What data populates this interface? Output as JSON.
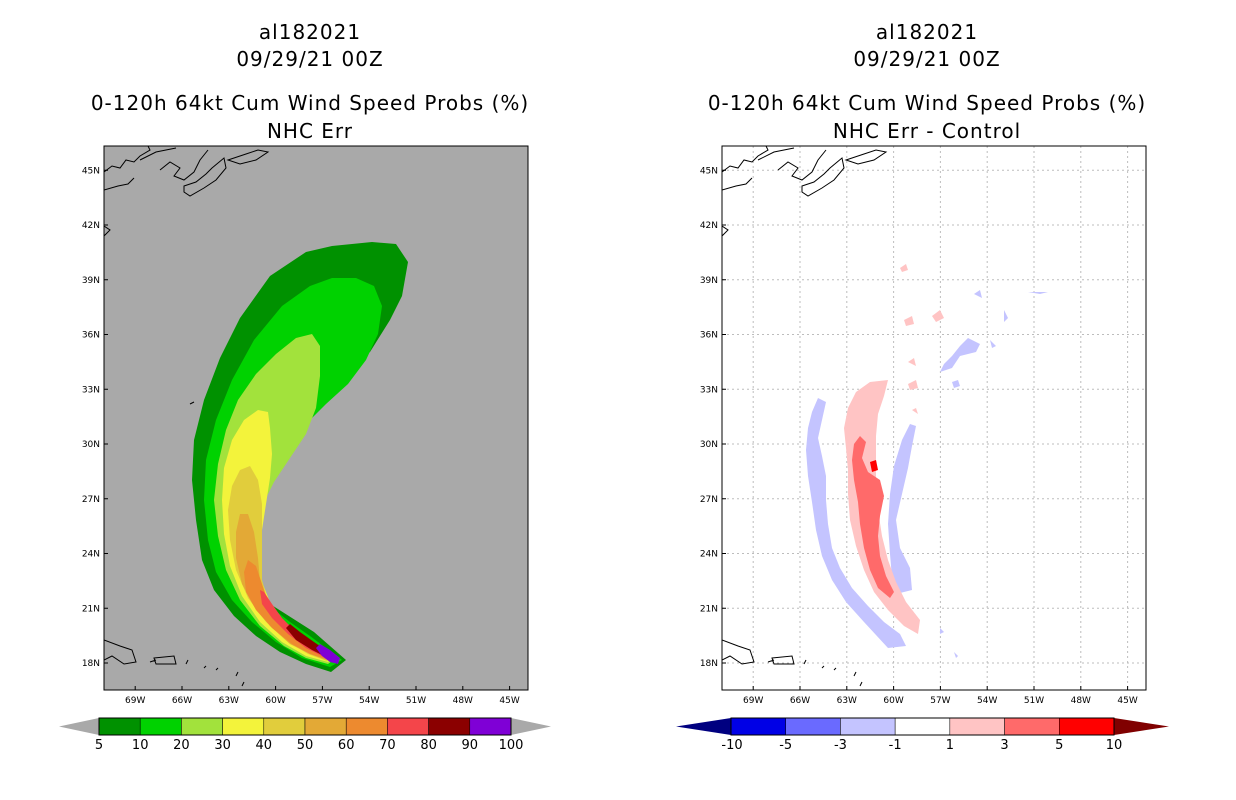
{
  "panels": [
    {
      "storm": "al182021",
      "time": "09/29/21 00Z",
      "title": "0-120h 64kt Cum Wind Speed Probs (%)",
      "subtitle": "NHC Err",
      "background": "#a9a9a9",
      "gridlines": false,
      "colorbar": {
        "labels": [
          "5",
          "10",
          "20",
          "30",
          "40",
          "50",
          "60",
          "70",
          "80",
          "90",
          "100"
        ],
        "colors": [
          "#009100",
          "#00d200",
          "#a2e23c",
          "#f3f33b",
          "#e1cd3c",
          "#e3a936",
          "#ed8a2f",
          "#f4454a",
          "#8b0000",
          "#7f00d6"
        ],
        "low_cap": "#a9a9a9",
        "high_cap": "#a9a9a9"
      }
    },
    {
      "storm": "al182021",
      "time": "09/29/21 00Z",
      "title": "0-120h 64kt Cum Wind Speed Probs (%)",
      "subtitle": "NHC Err - Control",
      "background": "#ffffff",
      "gridlines": true,
      "colorbar": {
        "labels": [
          "-10",
          "-5",
          "-3",
          "-1",
          "1",
          "3",
          "5",
          "10"
        ],
        "colors": [
          "#0000e6",
          "#6a6aff",
          "#c4c4ff",
          "#ffffff",
          "#ffc4c4",
          "#ff6a6a",
          "#ff0000"
        ],
        "low_cap": "#000080",
        "high_cap": "#800000"
      }
    }
  ],
  "axes": {
    "x_ticks": [
      "69W",
      "66W",
      "63W",
      "60W",
      "57W",
      "54W",
      "51W",
      "48W",
      "45W"
    ],
    "y_ticks": [
      "45N",
      "42N",
      "39N",
      "36N",
      "33N",
      "30N",
      "27N",
      "24N",
      "21N",
      "18N"
    ]
  },
  "chart_data": [
    {
      "type": "heatmap",
      "title": "0-120h 64kt Cum Wind Speed Probs (%)",
      "subtitle": "NHC Err",
      "units": "%",
      "xlim": [
        -71,
        -43.5
      ],
      "ylim": [
        16.5,
        46.5
      ],
      "contour_levels": [
        5,
        10,
        20,
        30,
        40,
        50,
        60,
        70,
        80,
        90,
        100
      ],
      "peak_location": {
        "lon": -55.3,
        "lat": 18.1
      },
      "max_extent_north_lat": 40.9
    },
    {
      "type": "heatmap",
      "title": "0-120h 64kt Cum Wind Speed Probs (%)",
      "subtitle": "NHC Err - Control",
      "units": "%",
      "xlim": [
        -71,
        -43.5
      ],
      "ylim": [
        16.5,
        46.5
      ],
      "contour_levels": [
        -10,
        -5,
        -3,
        -1,
        1,
        3,
        5,
        10
      ]
    }
  ]
}
